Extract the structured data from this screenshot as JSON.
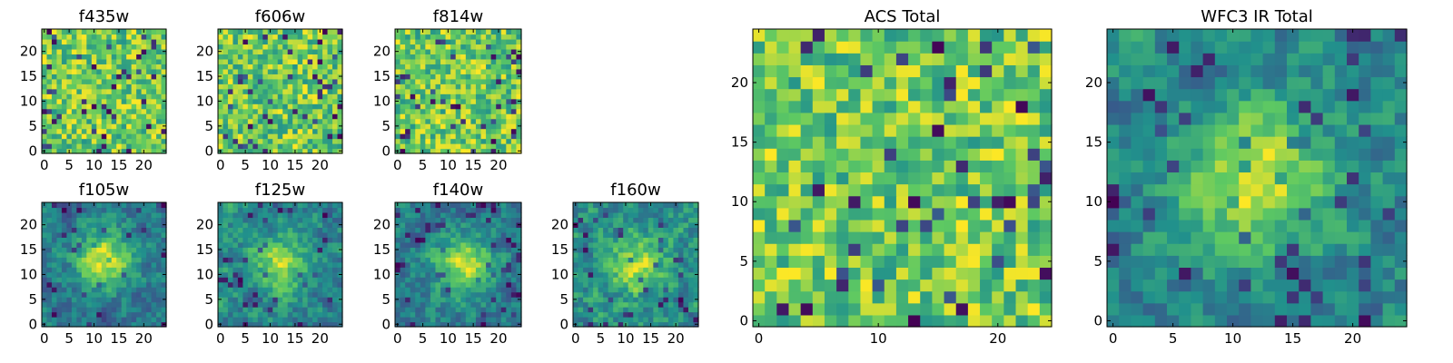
{
  "figure": {
    "background": "#ffffff",
    "colormap": "viridis",
    "colors": [
      "#440154",
      "#3b528b",
      "#21918c",
      "#5ec962",
      "#fde725"
    ]
  },
  "chart_data": [
    {
      "type": "heatmap",
      "title": "f435w",
      "grid_size": 25,
      "xlim": [
        -0.5,
        24.5
      ],
      "ylim": [
        -0.5,
        24.5
      ],
      "xticks": [
        0,
        5,
        10,
        15,
        20
      ],
      "yticks": [
        0,
        5,
        10,
        15,
        20
      ],
      "xticklabels": [
        "0",
        "5",
        "10",
        "15",
        "20"
      ],
      "yticklabels": [
        "0",
        "5",
        "10",
        "15",
        "20"
      ],
      "value_range": [
        0,
        1
      ],
      "seed": 11,
      "smoothing": 0,
      "blob": null
    },
    {
      "type": "heatmap",
      "title": "f606w",
      "grid_size": 25,
      "xlim": [
        -0.5,
        24.5
      ],
      "ylim": [
        -0.5,
        24.5
      ],
      "xticks": [
        0,
        5,
        10,
        15,
        20
      ],
      "yticks": [
        0,
        5,
        10,
        15,
        20
      ],
      "xticklabels": [
        "0",
        "5",
        "10",
        "15",
        "20"
      ],
      "yticklabels": [
        "0",
        "5",
        "10",
        "15",
        "20"
      ],
      "value_range": [
        0,
        1
      ],
      "seed": 23,
      "smoothing": 0,
      "blob": null
    },
    {
      "type": "heatmap",
      "title": "f814w",
      "grid_size": 25,
      "xlim": [
        -0.5,
        24.5
      ],
      "ylim": [
        -0.5,
        24.5
      ],
      "xticks": [
        0,
        5,
        10,
        15,
        20
      ],
      "yticks": [
        0,
        5,
        10,
        15,
        20
      ],
      "xticklabels": [
        "0",
        "5",
        "10",
        "15",
        "20"
      ],
      "yticklabels": [
        "0",
        "5",
        "10",
        "15",
        "20"
      ],
      "value_range": [
        0,
        1
      ],
      "seed": 37,
      "smoothing": 0,
      "blob": null
    },
    {
      "type": "heatmap",
      "title": "f105w",
      "grid_size": 25,
      "xlim": [
        -0.5,
        24.5
      ],
      "ylim": [
        -0.5,
        24.5
      ],
      "xticks": [
        0,
        5,
        10,
        15,
        20
      ],
      "yticks": [
        0,
        5,
        10,
        15,
        20
      ],
      "xticklabels": [
        "0",
        "5",
        "10",
        "15",
        "20"
      ],
      "yticklabels": [
        "0",
        "5",
        "10",
        "15",
        "20"
      ],
      "value_range": [
        0,
        1
      ],
      "seed": 41,
      "smoothing": 1,
      "blob": {
        "x": 12,
        "y": 13,
        "radius": 4,
        "strength": 0.45
      }
    },
    {
      "type": "heatmap",
      "title": "f125w",
      "grid_size": 25,
      "xlim": [
        -0.5,
        24.5
      ],
      "ylim": [
        -0.5,
        24.5
      ],
      "xticks": [
        0,
        5,
        10,
        15,
        20
      ],
      "yticks": [
        0,
        5,
        10,
        15,
        20
      ],
      "xticklabels": [
        "0",
        "5",
        "10",
        "15",
        "20"
      ],
      "yticklabels": [
        "0",
        "5",
        "10",
        "15",
        "20"
      ],
      "value_range": [
        0,
        1
      ],
      "seed": 53,
      "smoothing": 1,
      "blob": {
        "x": 12,
        "y": 12,
        "radius": 4,
        "strength": 0.3
      }
    },
    {
      "type": "heatmap",
      "title": "f140w",
      "grid_size": 25,
      "xlim": [
        -0.5,
        24.5
      ],
      "ylim": [
        -0.5,
        24.5
      ],
      "xticks": [
        0,
        5,
        10,
        15,
        20
      ],
      "yticks": [
        0,
        5,
        10,
        15,
        20
      ],
      "xticklabels": [
        "0",
        "5",
        "10",
        "15",
        "20"
      ],
      "yticklabels": [
        "0",
        "5",
        "10",
        "15",
        "20"
      ],
      "value_range": [
        0,
        1
      ],
      "seed": 67,
      "smoothing": 1,
      "blob": {
        "x": 13,
        "y": 12,
        "radius": 4,
        "strength": 0.4
      }
    },
    {
      "type": "heatmap",
      "title": "f160w",
      "grid_size": 25,
      "xlim": [
        -0.5,
        24.5
      ],
      "ylim": [
        -0.5,
        24.5
      ],
      "xticks": [
        0,
        5,
        10,
        15,
        20
      ],
      "yticks": [
        0,
        5,
        10,
        15,
        20
      ],
      "xticklabels": [
        "0",
        "5",
        "10",
        "15",
        "20"
      ],
      "yticklabels": [
        "0",
        "5",
        "10",
        "15",
        "20"
      ],
      "value_range": [
        0,
        1
      ],
      "seed": 79,
      "smoothing": 1,
      "blob": {
        "x": 12,
        "y": 12,
        "radius": 4,
        "strength": 0.25
      }
    },
    {
      "type": "heatmap",
      "title": "ACS Total",
      "grid_size": 25,
      "xlim": [
        -0.5,
        24.5
      ],
      "ylim": [
        -0.5,
        24.5
      ],
      "xticks": [
        0,
        10,
        20
      ],
      "yticks": [
        0,
        5,
        10,
        15,
        20
      ],
      "xticklabels": [
        "0",
        "10",
        "20"
      ],
      "yticklabels": [
        "0",
        "5",
        "10",
        "15",
        "20"
      ],
      "value_range": [
        0,
        1
      ],
      "seed": 97,
      "smoothing": 0,
      "blob": null
    },
    {
      "type": "heatmap",
      "title": "WFC3 IR Total",
      "grid_size": 25,
      "xlim": [
        -0.5,
        24.5
      ],
      "ylim": [
        -0.5,
        24.5
      ],
      "xticks": [
        0,
        5,
        10,
        15,
        20
      ],
      "yticks": [
        0,
        5,
        10,
        15,
        20
      ],
      "xticklabels": [
        "0",
        "5",
        "10",
        "15",
        "20"
      ],
      "yticklabels": [
        "0",
        "5",
        "10",
        "15",
        "20"
      ],
      "value_range": [
        0,
        1
      ],
      "seed": 131,
      "smoothing": 1,
      "blob": {
        "x": 12,
        "y": 12,
        "radius": 4,
        "strength": 0.45
      }
    }
  ]
}
